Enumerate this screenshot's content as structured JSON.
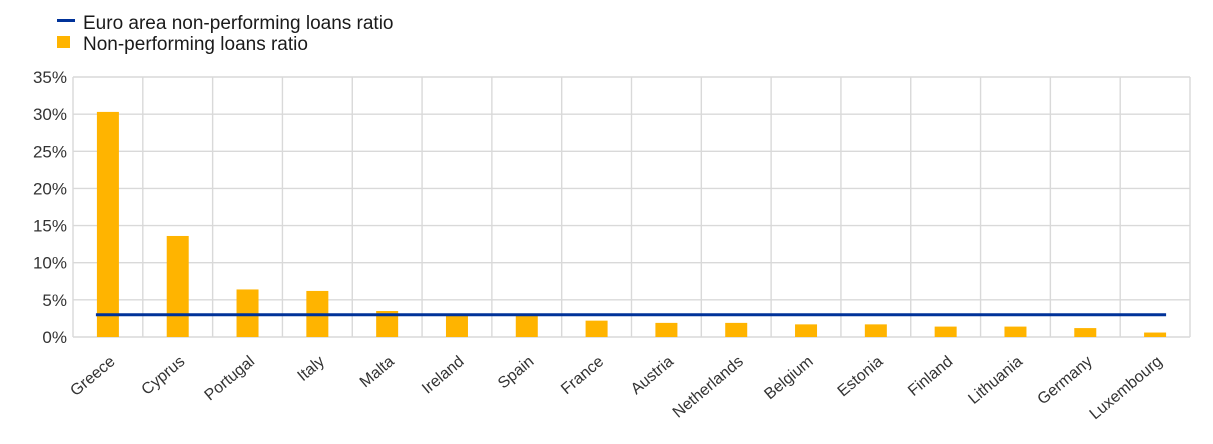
{
  "chart_data": {
    "type": "bar",
    "categories": [
      "Greece",
      "Cyprus",
      "Portugal",
      "Italy",
      "Malta",
      "Ireland",
      "Spain",
      "France",
      "Austria",
      "Netherlands",
      "Belgium",
      "Estonia",
      "Finland",
      "Lithuania",
      "Germany",
      "Luxembourg"
    ],
    "series": [
      {
        "name": "Non-performing loans ratio",
        "type": "bar",
        "color": "#FFB400",
        "values": [
          30.3,
          13.6,
          6.4,
          6.2,
          3.5,
          2.9,
          2.9,
          2.2,
          1.9,
          1.9,
          1.7,
          1.7,
          1.4,
          1.4,
          1.2,
          0.6
        ]
      },
      {
        "name": "Euro area non-performing loans ratio",
        "type": "line",
        "color": "#003299",
        "value": 3.0
      }
    ],
    "yticks": [
      "0%",
      "5%",
      "10%",
      "15%",
      "20%",
      "25%",
      "30%",
      "35%"
    ],
    "ylim": [
      0,
      35
    ],
    "grid": true,
    "legend": "top-left",
    "title": "",
    "xlabel": "",
    "ylabel": ""
  }
}
